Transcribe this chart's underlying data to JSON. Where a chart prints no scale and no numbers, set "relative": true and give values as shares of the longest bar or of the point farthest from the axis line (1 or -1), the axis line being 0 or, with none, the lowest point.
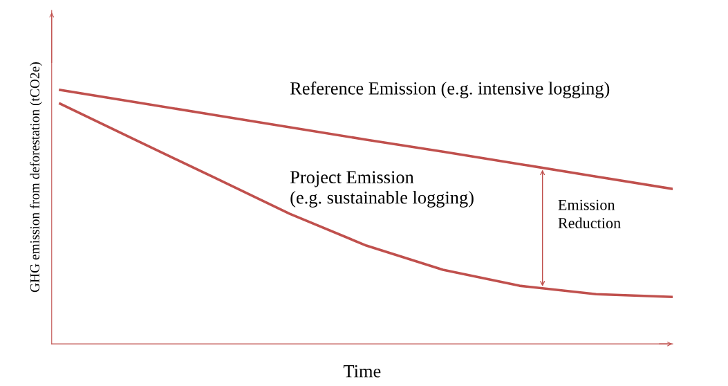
{
  "chart_data": {
    "type": "line",
    "relative": true,
    "xlabel": "Time",
    "ylabel": "GHG emission from deforestation (tCO2e)",
    "categories": [
      null,
      null,
      null,
      null,
      null,
      null,
      null,
      null,
      null
    ],
    "series": [
      {
        "name": "Reference Emission (e.g. intensive logging)",
        "color": "#c0504d",
        "values": [
          1,
          0.951,
          0.902,
          0.853,
          0.804,
          0.757,
          0.708,
          0.659,
          0.61
        ]
      },
      {
        "name": "Project Emission\n(e.g. sustainable logging)",
        "color": "#c0504d",
        "values": [
          0.946,
          0.801,
          0.657,
          0.512,
          0.387,
          0.292,
          0.229,
          0.196,
          0.185
        ]
      }
    ],
    "annotations": [
      "Emission\nReduction"
    ],
    "grid": false,
    "legend": false,
    "marker": "none",
    "line_style": "solid"
  }
}
